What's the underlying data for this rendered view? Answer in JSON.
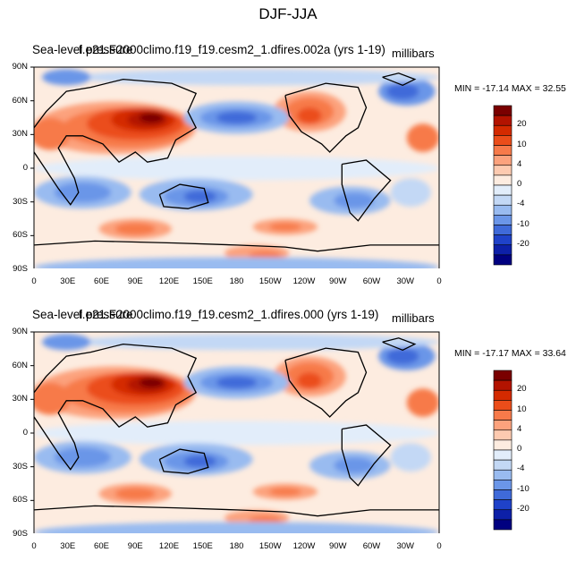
{
  "title": "DJF-JJA",
  "x_ticks": [
    "0",
    "30E",
    "60E",
    "90E",
    "120E",
    "150E",
    "180",
    "150W",
    "120W",
    "90W",
    "60W",
    "30W",
    "0"
  ],
  "y_ticks": [
    "90N",
    "60N",
    "30N",
    "0",
    "30S",
    "60S",
    "90S"
  ],
  "colorbar_ticks": [
    "20",
    "10",
    "4",
    "0",
    "-4",
    "-10",
    "-20"
  ],
  "colors": {
    "levels": [
      "#7a0000",
      "#b31300",
      "#d42a00",
      "#eb4d1a",
      "#f77a4a",
      "#fca27d",
      "#fdcab0",
      "#fdece0",
      "#e2edfa",
      "#c3d8f5",
      "#99bbf0",
      "#6b96e8",
      "#3f6ad9",
      "#1f42c9",
      "#0d20a8",
      "#000080"
    ]
  },
  "panels": [
    {
      "title": "Sea-level pressure",
      "case": "f.e21.F2000climo.f19_f19.cesm2_1.dfires.002a (yrs 1-19)",
      "units": "millibars",
      "min_max": "MIN = -17.14 MAX =  32.55"
    },
    {
      "title": "Sea-level pressure",
      "case": "f.e21.F2000climo.f19_f19.cesm2_1.dfires.000 (yrs 1-19)",
      "units": "millibars",
      "min_max": "MIN = -17.17 MAX =  33.64"
    }
  ]
}
